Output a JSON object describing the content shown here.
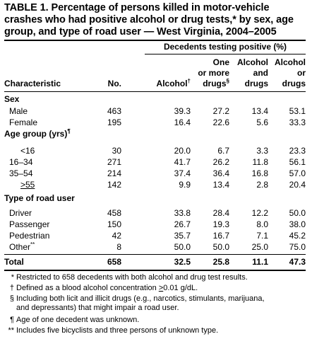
{
  "title": "TABLE 1. Percentage of persons killed in motor-vehicle crashes who had positive alcohol or drug tests,* by sex, age group, and type of road user — West Virginia, 2004–2005",
  "group_header": "Decedents testing positive (%)",
  "columns": {
    "characteristic": "Characteristic",
    "no": "No.",
    "alcohol": "Alcohol",
    "alcohol_mark": "†",
    "one_line1": "One",
    "one_line2": "or more",
    "one_line3": "drugs",
    "one_mark": "§",
    "ad_line1": "Alcohol",
    "ad_line2": "and",
    "ad_line3": "drugs",
    "ao_line1": "Alcohol",
    "ao_line2": "or",
    "ao_line3": "drugs"
  },
  "sections": {
    "sex": "Sex",
    "age": "Age group (yrs)",
    "age_mark": "¶",
    "road": "Type of road user"
  },
  "rows": {
    "male": [
      "Male",
      "463",
      "39.3",
      "27.2",
      "13.4",
      "53.1"
    ],
    "female": [
      "Female",
      "195",
      "16.4",
      "22.6",
      "5.6",
      "33.3"
    ],
    "lt16": [
      "<16",
      "30",
      "20.0",
      "6.7",
      "3.3",
      "23.3"
    ],
    "a16": [
      "16–34",
      "271",
      "41.7",
      "26.2",
      "11.8",
      "56.1"
    ],
    "a35": [
      "35–54",
      "214",
      "37.4",
      "36.4",
      "16.8",
      "57.0"
    ],
    "gte55": [
      ">55",
      "142",
      "9.9",
      "13.4",
      "2.8",
      "20.4"
    ],
    "driver": [
      "Driver",
      "458",
      "33.8",
      "28.4",
      "12.2",
      "50.0"
    ],
    "passenger": [
      "Passenger",
      "150",
      "26.7",
      "19.3",
      "8.0",
      "38.0"
    ],
    "pedestrian": [
      "Pedestrian",
      "42",
      "35.7",
      "16.7",
      "7.1",
      "45.2"
    ],
    "other": [
      "Other",
      "8",
      "50.0",
      "50.0",
      "25.0",
      "75.0"
    ],
    "other_mark": "**",
    "total": [
      "Total",
      "658",
      "32.5",
      "25.8",
      "11.1",
      "47.3"
    ]
  },
  "footnotes": {
    "f1_mark": "*",
    "f1": "Restricted to 658 decedents with both alcohol and drug test results.",
    "f2_mark": "†",
    "f2a": "Defined as a blood alcohol concentration ",
    "f2b": ">",
    "f2c": "0.01 g/dL.",
    "f3_mark": "§",
    "f3_line1": "Including both licit and illicit drugs (e.g., narcotics, stimulants, marijuana,",
    "f3_line2": "and depressants) that might impair a road user.",
    "f4_mark": "¶",
    "f4": "Age of one decedent was unknown.",
    "f5_mark": "**",
    "f5": "Includes five bicyclists and three persons of unknown type."
  }
}
